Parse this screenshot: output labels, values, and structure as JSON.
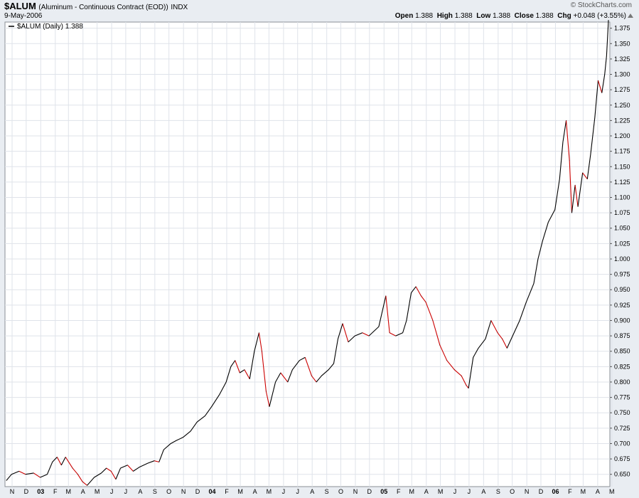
{
  "header": {
    "symbol": "$ALUM",
    "description": "(Aluminum - Continuous Contract (EOD))",
    "exchange": "INDX",
    "date": "9-May-2006",
    "brand": "© StockCharts.com",
    "open_label": "Open",
    "open": "1.388",
    "high_label": "High",
    "high": "1.388",
    "low_label": "Low",
    "low": "1.388",
    "close_label": "Close",
    "close": "1.388",
    "chg_label": "Chg",
    "chg": "+0.048 (+3.55%)"
  },
  "colors": {
    "up": "#000000",
    "down": "#cc0000",
    "plot_bg": "#ffffff",
    "page_bg": "#e9edf2",
    "grid": "#dfe3ea"
  },
  "chart_data": {
    "type": "line",
    "legend": "$ALUM (Daily) 1.388",
    "legend_position": "top-left",
    "grid": true,
    "xlim": [
      "2002-11-01",
      "2006-05-12"
    ],
    "ylim": [
      0.63,
      1.385
    ],
    "y_ticks": [
      0.65,
      0.675,
      0.7,
      0.725,
      0.75,
      0.775,
      0.8,
      0.825,
      0.85,
      0.875,
      0.9,
      0.925,
      0.95,
      0.975,
      1.0,
      1.025,
      1.05,
      1.075,
      1.1,
      1.125,
      1.15,
      1.175,
      1.2,
      1.225,
      1.25,
      1.275,
      1.3,
      1.325,
      1.35,
      1.375
    ],
    "x_ticks": [
      "N",
      "D",
      "03",
      "F",
      "M",
      "A",
      "M",
      "J",
      "J",
      "A",
      "S",
      "O",
      "N",
      "D",
      "04",
      "F",
      "M",
      "A",
      "M",
      "J",
      "J",
      "A",
      "S",
      "O",
      "N",
      "D",
      "05",
      "F",
      "M",
      "A",
      "M",
      "J",
      "J",
      "A",
      "S",
      "O",
      "N",
      "D",
      "06",
      "F",
      "M",
      "A",
      "M"
    ],
    "points": [
      [
        "2002-11-04",
        0.64
      ],
      [
        "2002-11-15",
        0.65
      ],
      [
        "2002-12-01",
        0.655
      ],
      [
        "2002-12-15",
        0.65
      ],
      [
        "2003-01-01",
        0.652
      ],
      [
        "2003-01-15",
        0.645
      ],
      [
        "2003-01-30",
        0.65
      ],
      [
        "2003-02-10",
        0.67
      ],
      [
        "2003-02-20",
        0.678
      ],
      [
        "2003-03-01",
        0.665
      ],
      [
        "2003-03-10",
        0.678
      ],
      [
        "2003-03-25",
        0.66
      ],
      [
        "2003-04-05",
        0.65
      ],
      [
        "2003-04-15",
        0.638
      ],
      [
        "2003-04-25",
        0.632
      ],
      [
        "2003-05-10",
        0.645
      ],
      [
        "2003-05-25",
        0.652
      ],
      [
        "2003-06-05",
        0.66
      ],
      [
        "2003-06-15",
        0.655
      ],
      [
        "2003-06-25",
        0.642
      ],
      [
        "2003-07-05",
        0.66
      ],
      [
        "2003-07-20",
        0.665
      ],
      [
        "2003-08-01",
        0.655
      ],
      [
        "2003-08-15",
        0.662
      ],
      [
        "2003-09-01",
        0.668
      ],
      [
        "2003-09-15",
        0.672
      ],
      [
        "2003-09-25",
        0.67
      ],
      [
        "2003-10-05",
        0.69
      ],
      [
        "2003-10-20",
        0.7
      ],
      [
        "2003-11-01",
        0.705
      ],
      [
        "2003-11-15",
        0.71
      ],
      [
        "2003-12-01",
        0.72
      ],
      [
        "2003-12-15",
        0.735
      ],
      [
        "2004-01-01",
        0.745
      ],
      [
        "2004-01-15",
        0.76
      ],
      [
        "2004-02-01",
        0.78
      ],
      [
        "2004-02-15",
        0.8
      ],
      [
        "2004-02-25",
        0.825
      ],
      [
        "2004-03-05",
        0.835
      ],
      [
        "2004-03-15",
        0.815
      ],
      [
        "2004-03-25",
        0.82
      ],
      [
        "2004-04-05",
        0.805
      ],
      [
        "2004-04-15",
        0.85
      ],
      [
        "2004-04-25",
        0.88
      ],
      [
        "2004-05-01",
        0.85
      ],
      [
        "2004-05-10",
        0.785
      ],
      [
        "2004-05-17",
        0.76
      ],
      [
        "2004-05-30",
        0.8
      ],
      [
        "2004-06-10",
        0.815
      ],
      [
        "2004-06-25",
        0.8
      ],
      [
        "2004-07-05",
        0.82
      ],
      [
        "2004-07-20",
        0.835
      ],
      [
        "2004-08-01",
        0.84
      ],
      [
        "2004-08-15",
        0.81
      ],
      [
        "2004-08-25",
        0.8
      ],
      [
        "2004-09-05",
        0.81
      ],
      [
        "2004-09-20",
        0.82
      ],
      [
        "2004-10-01",
        0.83
      ],
      [
        "2004-10-10",
        0.87
      ],
      [
        "2004-10-20",
        0.895
      ],
      [
        "2004-11-01",
        0.865
      ],
      [
        "2004-11-15",
        0.875
      ],
      [
        "2004-12-01",
        0.88
      ],
      [
        "2004-12-15",
        0.875
      ],
      [
        "2005-01-05",
        0.89
      ],
      [
        "2005-01-20",
        0.94
      ],
      [
        "2005-01-28",
        0.88
      ],
      [
        "2005-02-10",
        0.875
      ],
      [
        "2005-02-25",
        0.88
      ],
      [
        "2005-03-05",
        0.9
      ],
      [
        "2005-03-15",
        0.945
      ],
      [
        "2005-03-25",
        0.955
      ],
      [
        "2005-04-05",
        0.94
      ],
      [
        "2005-04-15",
        0.93
      ],
      [
        "2005-04-30",
        0.9
      ],
      [
        "2005-05-15",
        0.86
      ],
      [
        "2005-05-30",
        0.835
      ],
      [
        "2005-06-15",
        0.82
      ],
      [
        "2005-06-30",
        0.81
      ],
      [
        "2005-07-10",
        0.795
      ],
      [
        "2005-07-15",
        0.79
      ],
      [
        "2005-07-25",
        0.84
      ],
      [
        "2005-08-05",
        0.855
      ],
      [
        "2005-08-20",
        0.87
      ],
      [
        "2005-09-01",
        0.9
      ],
      [
        "2005-09-15",
        0.88
      ],
      [
        "2005-09-25",
        0.87
      ],
      [
        "2005-10-05",
        0.855
      ],
      [
        "2005-10-20",
        0.88
      ],
      [
        "2005-11-01",
        0.9
      ],
      [
        "2005-11-15",
        0.93
      ],
      [
        "2005-12-01",
        0.96
      ],
      [
        "2005-12-10",
        1.0
      ],
      [
        "2005-12-20",
        1.03
      ],
      [
        "2006-01-01",
        1.06
      ],
      [
        "2006-01-15",
        1.08
      ],
      [
        "2006-01-25",
        1.13
      ],
      [
        "2006-02-01",
        1.19
      ],
      [
        "2006-02-08",
        1.225
      ],
      [
        "2006-02-15",
        1.16
      ],
      [
        "2006-02-20",
        1.075
      ],
      [
        "2006-02-27",
        1.12
      ],
      [
        "2006-03-05",
        1.085
      ],
      [
        "2006-03-15",
        1.14
      ],
      [
        "2006-03-25",
        1.13
      ],
      [
        "2006-04-01",
        1.17
      ],
      [
        "2006-04-10",
        1.23
      ],
      [
        "2006-04-17",
        1.29
      ],
      [
        "2006-04-25",
        1.27
      ],
      [
        "2006-05-01",
        1.3
      ],
      [
        "2006-05-05",
        1.33
      ],
      [
        "2006-05-09",
        1.388
      ]
    ]
  }
}
